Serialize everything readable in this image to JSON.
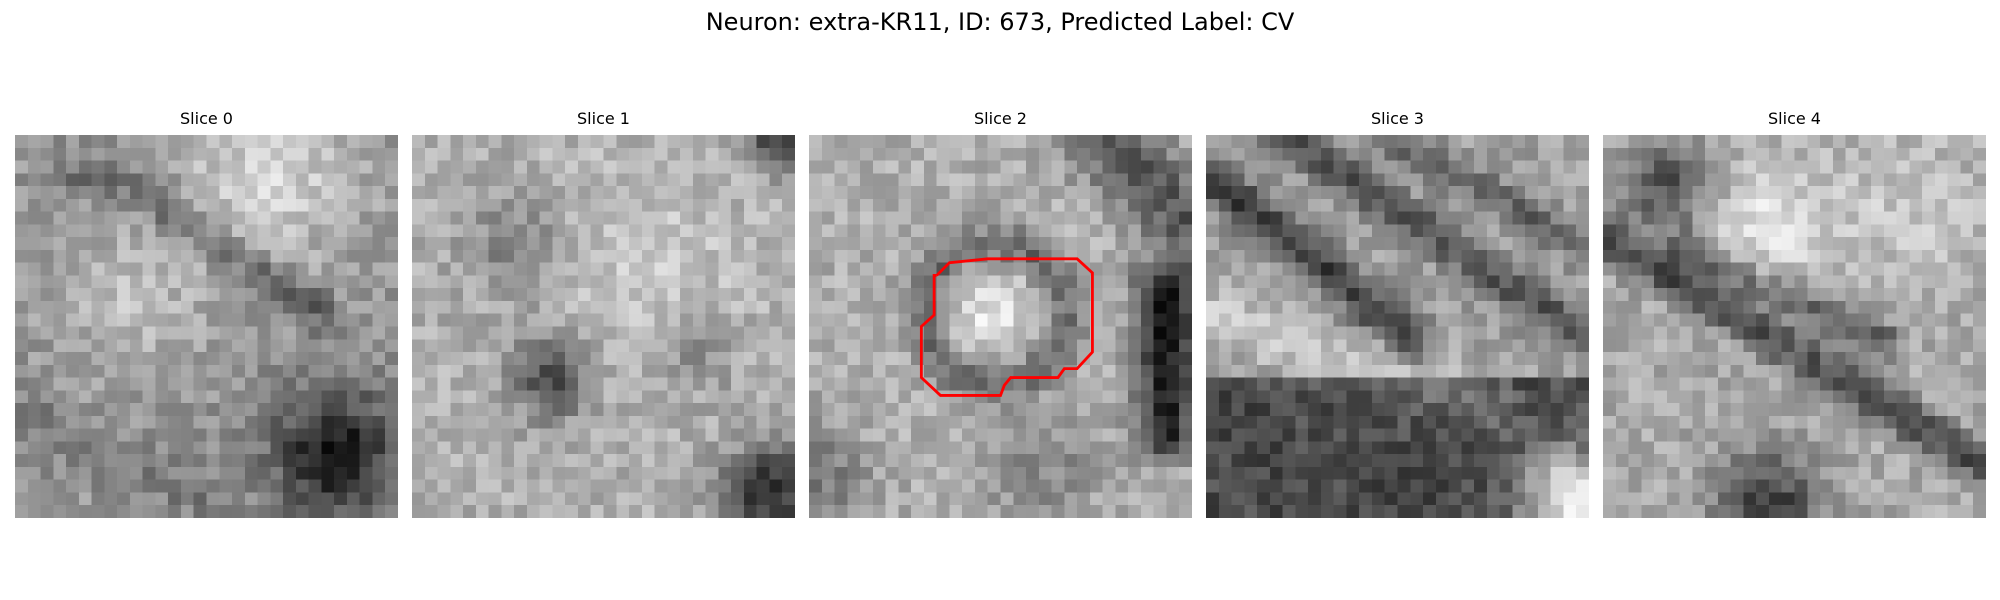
{
  "figure": {
    "title": "Neuron: extra-KR11, ID: 673, Predicted Label: CV",
    "contour_color": "#ff0000",
    "colormap": "gray"
  },
  "slices": [
    {
      "title": "Slice 0",
      "has_contour": false
    },
    {
      "title": "Slice 1",
      "has_contour": false
    },
    {
      "title": "Slice 2",
      "has_contour": true
    },
    {
      "title": "Slice 3",
      "has_contour": false
    },
    {
      "title": "Slice 4",
      "has_contour": false
    }
  ]
}
